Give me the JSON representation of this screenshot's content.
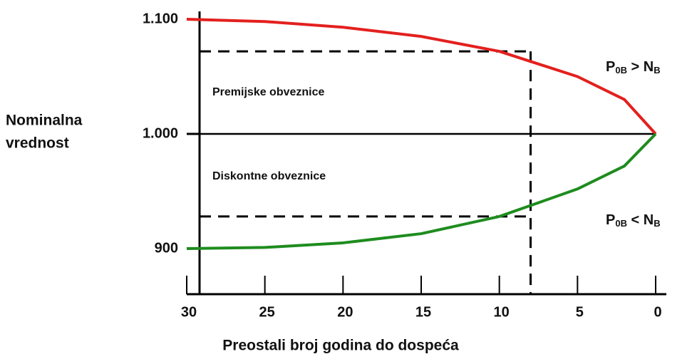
{
  "chart_data": {
    "type": "line",
    "x_label": "Preostali broj godina do dospeća",
    "y_label": [
      "Nominalna",
      "vrednost"
    ],
    "x": [
      30,
      25,
      20,
      15,
      10,
      5,
      2,
      0
    ],
    "series": [
      {
        "name": "Premijske obveznice",
        "color": "#e3201e",
        "values": [
          1100,
          1098,
          1093,
          1085,
          1072,
          1050,
          1030,
          1000
        ]
      },
      {
        "name": "Diskontne obveznice",
        "color": "#1e8c1e",
        "values": [
          900,
          901,
          905,
          913,
          928,
          952,
          972,
          1000
        ]
      }
    ],
    "xlim": [
      30,
      0
    ],
    "ylim": [
      860,
      1110
    ],
    "xticks": [
      30,
      25,
      20,
      15,
      10,
      5,
      0
    ],
    "yticks": [
      {
        "value": 900,
        "label": "900"
      },
      {
        "value": 1000,
        "label": "1.000"
      },
      {
        "value": 1100,
        "label": "1.100"
      }
    ],
    "guide": {
      "x": 8,
      "y_high": 1072,
      "y_low": 928
    },
    "relations": [
      {
        "p": "P",
        "p_sub": "0B",
        "op": " > ",
        "n": "N",
        "n_sub": "B"
      },
      {
        "p": "P",
        "p_sub": "0B",
        "op": " < ",
        "n": "N",
        "n_sub": "B"
      }
    ]
  }
}
